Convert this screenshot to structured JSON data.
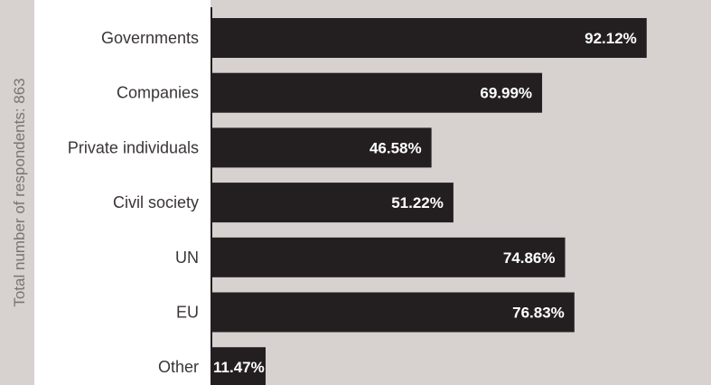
{
  "chart_data": {
    "type": "bar",
    "orientation": "horizontal",
    "ylabel": "Total number of respondents:  863",
    "categories": [
      "Governments",
      "Companies",
      "Private individuals",
      "Civil society",
      "UN",
      "EU",
      "Other"
    ],
    "values": [
      92.12,
      69.99,
      46.58,
      51.22,
      74.86,
      76.83,
      11.47
    ],
    "value_labels": [
      "92.12%",
      "69.99%",
      "46.58%",
      "51.22%",
      "74.86%",
      "76.83%",
      "11.47%"
    ],
    "xlim": [
      0,
      100
    ],
    "grid": false,
    "legend": "none",
    "colors": {
      "background": "#d7d1cf",
      "label_panel": "#ffffff",
      "bar": "#231f20",
      "value_text": "#ffffff",
      "category_text": "#3a3535",
      "side_title_text": "#7a7472"
    }
  }
}
